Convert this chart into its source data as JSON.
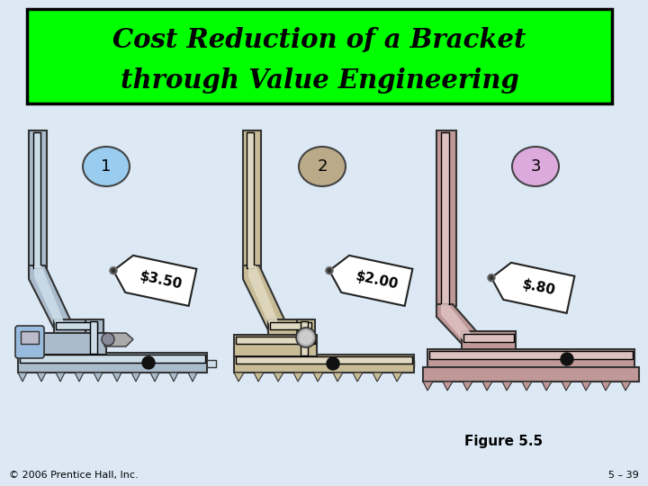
{
  "title_line1": "Cost Reduction of a Bracket",
  "title_line2": "through Value Engineering",
  "title_bg": "#00FF00",
  "title_border": "#000000",
  "bg_color": "#dce9f5",
  "fig_label": "Figure 5.5",
  "copyright": "© 2006 Prentice Hall, Inc.",
  "slide_num": "5 – 39",
  "brackets": [
    {
      "number": "1",
      "price": "$3.50",
      "circle_color": "#99ccee",
      "bracket_color": "#aabbcc",
      "bracket_light": "#ccdde8",
      "circle_border": "#444444"
    },
    {
      "number": "2",
      "price": "$2.00",
      "circle_color": "#bbaa88",
      "bracket_color": "#c8bc96",
      "bracket_light": "#e0d8c0",
      "circle_border": "#444444"
    },
    {
      "number": "3",
      "price": "$.80",
      "circle_color": "#ddaadd",
      "bracket_color": "#c09898",
      "bracket_light": "#ddc0c0",
      "circle_border": "#444444"
    }
  ]
}
